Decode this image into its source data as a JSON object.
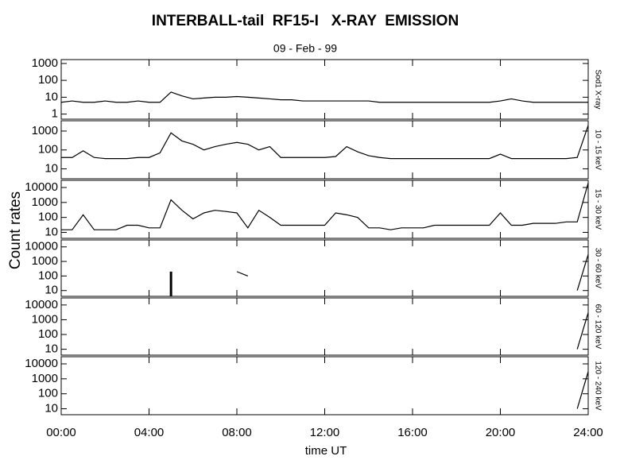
{
  "title": "INTERBALL-tail  RF15-I   X-RAY  EMISSION",
  "subtitle": "09 - Feb - 99",
  "y_label": "Count rates",
  "x_label": "time UT",
  "chart_data": [
    {
      "type": "line",
      "title": "Sod1 X-ray",
      "log_y": true,
      "color": "#000000",
      "xlim": [
        0,
        24
      ],
      "ylim": [
        0.5,
        1700
      ],
      "yticks": [
        1,
        10,
        100,
        1000
      ],
      "x": [
        0,
        0.5,
        1,
        1.5,
        2,
        2.5,
        3,
        3.5,
        4,
        4.5,
        5,
        5.5,
        6,
        6.5,
        7,
        7.5,
        8,
        8.5,
        9,
        9.5,
        10,
        10.5,
        11,
        11.5,
        12,
        12.5,
        13,
        13.5,
        14,
        14.5,
        15,
        15.5,
        16,
        16.5,
        17,
        17.5,
        18,
        18.5,
        19,
        19.5,
        20,
        20.5,
        21,
        21.5,
        22,
        22.5,
        23,
        23.5,
        24
      ],
      "values": [
        5,
        6,
        5,
        5,
        6,
        5,
        5,
        6,
        5,
        5,
        20,
        12,
        8,
        9,
        10,
        10,
        11,
        10,
        9,
        8,
        7,
        7,
        6,
        6,
        6,
        6,
        6,
        6,
        6,
        5,
        5,
        5,
        5,
        5,
        5,
        5,
        5,
        5,
        5,
        5,
        6,
        8,
        6,
        5,
        5,
        5,
        5,
        5,
        5
      ]
    },
    {
      "type": "line",
      "title": "10 - 15 keV",
      "log_y": true,
      "color": "#000000",
      "xlim": [
        0,
        24
      ],
      "ylim": [
        3,
        3500
      ],
      "yticks": [
        10,
        100,
        1000
      ],
      "x": [
        0,
        0.5,
        1,
        1.5,
        2,
        2.5,
        3,
        3.5,
        4,
        4.5,
        5,
        5.5,
        6,
        6.5,
        7,
        7.5,
        8,
        8.5,
        9,
        9.5,
        10,
        10.5,
        11,
        11.5,
        12,
        12.5,
        13,
        13.5,
        14,
        14.5,
        15,
        15.5,
        16,
        16.5,
        17,
        17.5,
        18,
        18.5,
        19,
        19.5,
        20,
        20.5,
        21,
        21.5,
        22,
        22.5,
        23,
        23.5,
        24
      ],
      "values": [
        40,
        40,
        90,
        40,
        35,
        35,
        35,
        40,
        40,
        70,
        800,
        300,
        200,
        100,
        150,
        200,
        250,
        200,
        100,
        150,
        40,
        40,
        40,
        40,
        40,
        45,
        150,
        80,
        50,
        40,
        35,
        35,
        35,
        35,
        35,
        35,
        35,
        35,
        35,
        35,
        60,
        35,
        35,
        35,
        35,
        35,
        35,
        40,
        2000
      ]
    },
    {
      "type": "line",
      "title": "15 - 30 keV",
      "log_y": true,
      "color": "#000000",
      "xlim": [
        0,
        24
      ],
      "ylim": [
        4,
        30000
      ],
      "yticks": [
        10,
        100,
        1000,
        10000
      ],
      "x": [
        0,
        0.5,
        1,
        1.5,
        2,
        2.5,
        3,
        3.5,
        4,
        4.5,
        5,
        5.5,
        6,
        6.5,
        7,
        7.5,
        8,
        8.5,
        9,
        9.5,
        10,
        10.5,
        11,
        11.5,
        12,
        12.5,
        13,
        13.5,
        14,
        14.5,
        15,
        15.5,
        16,
        16.5,
        17,
        17.5,
        18,
        18.5,
        19,
        19.5,
        20,
        20.5,
        21,
        21.5,
        22,
        22.5,
        23,
        23.5,
        24
      ],
      "values": [
        15,
        15,
        150,
        15,
        15,
        15,
        30,
        30,
        20,
        20,
        1500,
        300,
        80,
        200,
        300,
        250,
        200,
        20,
        300,
        100,
        30,
        30,
        30,
        30,
        30,
        200,
        150,
        100,
        20,
        20,
        15,
        20,
        20,
        20,
        30,
        30,
        30,
        30,
        30,
        30,
        200,
        30,
        30,
        40,
        40,
        40,
        50,
        50,
        20000
      ]
    },
    {
      "type": "line",
      "title": "30 - 60 keV",
      "log_y": true,
      "color": "#000000",
      "xlim": [
        0,
        24
      ],
      "ylim": [
        4,
        30000
      ],
      "yticks": [
        10,
        100,
        1000,
        10000
      ],
      "x": [
        0,
        0.5,
        1,
        1.5,
        2,
        2.5,
        3,
        3.5,
        4,
        4.5,
        5,
        5.5,
        6,
        6.5,
        7,
        7.5,
        8,
        8.5,
        9,
        9.5,
        10,
        10.5,
        11,
        11.5,
        12,
        12.5,
        13,
        13.5,
        14,
        14.5,
        15,
        15.5,
        16,
        16.5,
        17,
        17.5,
        18,
        18.5,
        19,
        19.5,
        20,
        20.5,
        21,
        21.5,
        22,
        22.5,
        23,
        23.5,
        24
      ],
      "values": [
        null,
        null,
        null,
        null,
        null,
        null,
        null,
        null,
        null,
        null,
        200,
        null,
        null,
        null,
        null,
        null,
        200,
        100,
        null,
        null,
        null,
        null,
        null,
        null,
        null,
        null,
        null,
        null,
        null,
        null,
        null,
        null,
        null,
        null,
        null,
        null,
        null,
        null,
        null,
        null,
        null,
        null,
        null,
        null,
        null,
        null,
        null,
        10,
        3000
      ]
    },
    {
      "type": "line",
      "title": "60 - 120 keV",
      "log_y": true,
      "color": "#000000",
      "xlim": [
        0,
        24
      ],
      "ylim": [
        4,
        30000
      ],
      "yticks": [
        10,
        100,
        1000,
        10000
      ],
      "x": [
        0,
        0.5,
        1,
        1.5,
        2,
        2.5,
        3,
        3.5,
        4,
        4.5,
        5,
        5.5,
        6,
        6.5,
        7,
        7.5,
        8,
        8.5,
        9,
        9.5,
        10,
        10.5,
        11,
        11.5,
        12,
        12.5,
        13,
        13.5,
        14,
        14.5,
        15,
        15.5,
        16,
        16.5,
        17,
        17.5,
        18,
        18.5,
        19,
        19.5,
        20,
        20.5,
        21,
        21.5,
        22,
        22.5,
        23,
        23.5,
        24
      ],
      "values": [
        null,
        null,
        null,
        null,
        null,
        null,
        null,
        null,
        null,
        null,
        null,
        null,
        null,
        null,
        null,
        null,
        null,
        null,
        null,
        null,
        null,
        null,
        null,
        null,
        null,
        null,
        null,
        null,
        null,
        null,
        null,
        null,
        null,
        null,
        null,
        null,
        null,
        null,
        null,
        null,
        null,
        null,
        null,
        null,
        null,
        null,
        null,
        10,
        3000
      ]
    },
    {
      "type": "line",
      "title": "120 - 240 keV",
      "log_y": true,
      "color": "#000000",
      "xlim": [
        0,
        24
      ],
      "ylim": [
        4,
        30000
      ],
      "yticks": [
        10,
        100,
        1000,
        10000
      ],
      "x": [
        0,
        0.5,
        1,
        1.5,
        2,
        2.5,
        3,
        3.5,
        4,
        4.5,
        5,
        5.5,
        6,
        6.5,
        7,
        7.5,
        8,
        8.5,
        9,
        9.5,
        10,
        10.5,
        11,
        11.5,
        12,
        12.5,
        13,
        13.5,
        14,
        14.5,
        15,
        15.5,
        16,
        16.5,
        17,
        17.5,
        18,
        18.5,
        19,
        19.5,
        20,
        20.5,
        21,
        21.5,
        22,
        22.5,
        23,
        23.5,
        24
      ],
      "values": [
        null,
        null,
        null,
        null,
        null,
        null,
        null,
        null,
        null,
        null,
        null,
        null,
        null,
        null,
        null,
        null,
        null,
        null,
        null,
        null,
        null,
        null,
        null,
        null,
        null,
        null,
        null,
        null,
        null,
        null,
        null,
        null,
        null,
        null,
        null,
        null,
        null,
        null,
        null,
        null,
        null,
        null,
        null,
        null,
        null,
        null,
        null,
        10,
        3000
      ],
      "xticks": [
        {
          "value": 0,
          "label": "00:00"
        },
        {
          "value": 4,
          "label": "04:00"
        },
        {
          "value": 8,
          "label": "08:00"
        },
        {
          "value": 12,
          "label": "12:00"
        },
        {
          "value": 16,
          "label": "16:00"
        },
        {
          "value": 20,
          "label": "20:00"
        },
        {
          "value": 24,
          "label": "24:00"
        }
      ]
    }
  ]
}
